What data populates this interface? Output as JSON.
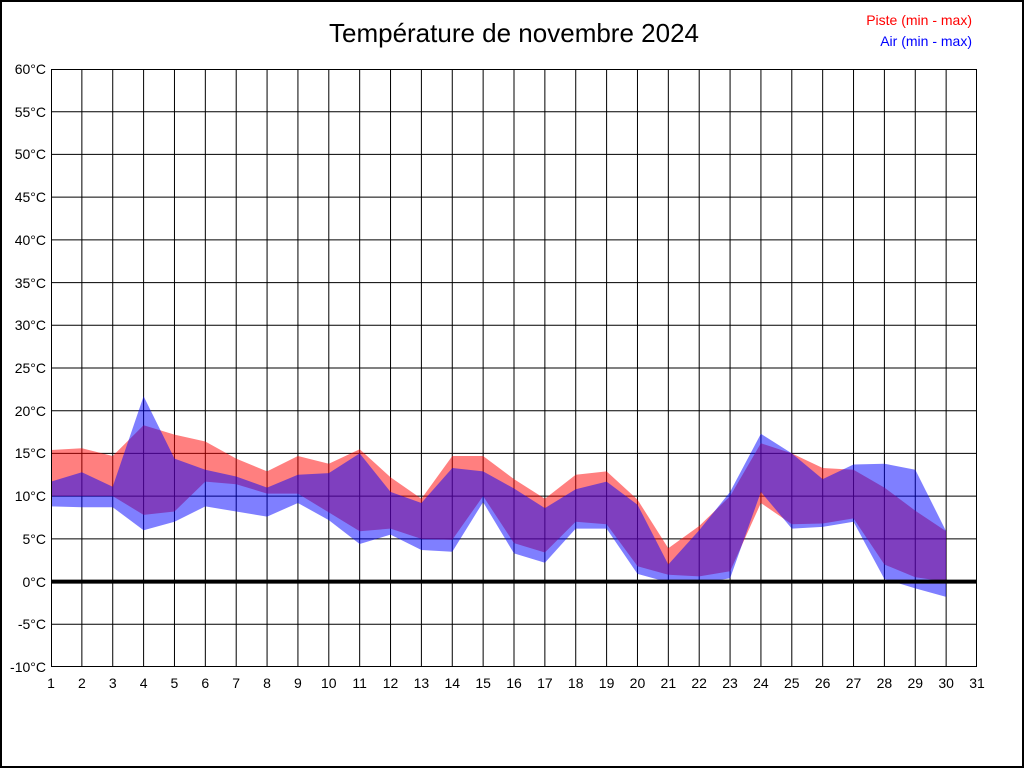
{
  "figure": {
    "title": "Température de novembre 2024",
    "legend": [
      {
        "label": "Piste (min - max)",
        "color": "#ff0000"
      },
      {
        "label": "Air (min - max)",
        "color": "#0000ff"
      }
    ]
  },
  "chart_data": {
    "type": "area",
    "title": "Température de novembre 2024",
    "xlabel": "",
    "ylabel": "",
    "xlim": [
      1,
      31
    ],
    "ylim": [
      -10,
      60
    ],
    "grid": true,
    "zero_line_value": 0,
    "x_tick_labels": [
      "1",
      "2",
      "3",
      "4",
      "5",
      "6",
      "7",
      "8",
      "9",
      "10",
      "11",
      "12",
      "13",
      "14",
      "15",
      "16",
      "17",
      "18",
      "19",
      "20",
      "21",
      "22",
      "23",
      "24",
      "25",
      "26",
      "27",
      "28",
      "29",
      "30",
      "31"
    ],
    "y_tick_labels": [
      "60°C",
      "55°C",
      "50°C",
      "45°C",
      "40°C",
      "35°C",
      "30°C",
      "25°C",
      "20°C",
      "15°C",
      "10°C",
      "5°C",
      "0°C",
      "-5°C",
      "-10°C"
    ],
    "y_tick_values": [
      60,
      55,
      50,
      45,
      40,
      35,
      30,
      25,
      20,
      15,
      10,
      5,
      0,
      -5,
      -10
    ],
    "x": [
      1,
      2,
      3,
      4,
      5,
      6,
      7,
      8,
      9,
      10,
      11,
      12,
      13,
      14,
      15,
      16,
      17,
      18,
      19,
      20,
      21,
      22,
      23,
      24,
      25,
      26,
      27,
      28,
      29,
      30
    ],
    "series": [
      {
        "name": "Piste (min - max)",
        "band": true,
        "fill": "rgba(255,0,0,0.5)",
        "legend_color": "#ff0000",
        "max": [
          15.4,
          15.6,
          14.7,
          18.3,
          17.2,
          16.4,
          14.4,
          12.9,
          14.7,
          13.8,
          15.5,
          12.2,
          9.7,
          14.7,
          14.7,
          12.0,
          9.7,
          12.5,
          12.9,
          9.6,
          3.9,
          6.5,
          10.0,
          16.2,
          15.0,
          13.3,
          13.1,
          11.0,
          8.3,
          5.9
        ],
        "min": [
          10.0,
          10.0,
          10.0,
          7.8,
          8.2,
          11.7,
          11.4,
          10.3,
          10.3,
          8.1,
          5.9,
          6.2,
          5.0,
          4.9,
          10.0,
          4.5,
          3.4,
          7.0,
          6.7,
          1.8,
          0.8,
          0.6,
          1.2,
          9.2,
          6.7,
          6.8,
          7.4,
          2.0,
          0.5,
          0.0
        ]
      },
      {
        "name": "Air (min - max)",
        "band": true,
        "fill": "rgba(0,0,255,0.5)",
        "legend_color": "#0000ff",
        "max": [
          11.7,
          12.8,
          11.1,
          21.7,
          14.4,
          13.1,
          12.3,
          11.0,
          12.5,
          12.7,
          15.0,
          10.5,
          9.2,
          13.3,
          12.9,
          10.9,
          8.6,
          10.8,
          11.7,
          9.0,
          2.0,
          6.0,
          10.5,
          17.3,
          15.0,
          12.0,
          13.7,
          13.8,
          13.1,
          5.9
        ],
        "min": [
          8.8,
          8.7,
          8.7,
          6.0,
          7.0,
          8.8,
          8.2,
          7.6,
          9.2,
          7.2,
          4.4,
          5.5,
          3.7,
          3.5,
          9.3,
          3.3,
          2.2,
          6.2,
          6.2,
          0.9,
          -0.1,
          -0.2,
          0.4,
          10.5,
          6.2,
          6.4,
          7.0,
          0.3,
          -0.8,
          -1.8
        ]
      }
    ]
  }
}
